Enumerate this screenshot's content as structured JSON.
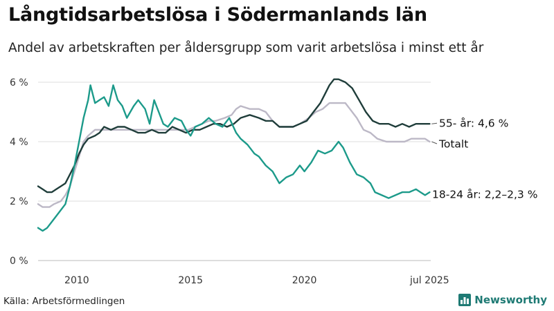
{
  "header": {
    "title": "Långtidsarbetslösa i Södermanlands län",
    "subtitle": "Andel av arbetskraften per åldersgrupp som varit arbetslösa i minst ett år"
  },
  "footer": {
    "source": "Källa: Arbetsförmedlingen",
    "brand": "Newsworthy"
  },
  "icons": {
    "brand": "chart-bars-icon"
  },
  "colors": {
    "older": "#1f3d3a",
    "young": "#1c9a8a",
    "total": "#bcb8c6",
    "grid": "#dddddd"
  },
  "chart_data": {
    "type": "line",
    "title": "Långtidsarbetslösa i Södermanlands län",
    "xlabel": "",
    "ylabel": "",
    "xlim": [
      2008.3,
      2025.55
    ],
    "ylim": [
      0,
      6
    ],
    "x_ticks": [
      {
        "value": 2010,
        "label": "2010"
      },
      {
        "value": 2015,
        "label": "2015"
      },
      {
        "value": 2020,
        "label": "2020"
      },
      {
        "value": 2025.5,
        "label": "jul 2025"
      }
    ],
    "y_ticks": [
      {
        "value": 0,
        "label": "0 %"
      },
      {
        "value": 2,
        "label": "2 %"
      },
      {
        "value": 4,
        "label": "4 %"
      },
      {
        "value": 6,
        "label": "6 %"
      }
    ],
    "grid": true,
    "series": [
      {
        "name": "Totalt",
        "key": "total",
        "end_label": "Totalt",
        "points": [
          [
            2008.3,
            1.9
          ],
          [
            2008.5,
            1.8
          ],
          [
            2008.8,
            1.8
          ],
          [
            2009.0,
            1.9
          ],
          [
            2009.3,
            2.0
          ],
          [
            2009.5,
            2.2
          ],
          [
            2009.7,
            2.5
          ],
          [
            2009.9,
            3.0
          ],
          [
            2010.1,
            3.5
          ],
          [
            2010.3,
            4.0
          ],
          [
            2010.5,
            4.2
          ],
          [
            2010.8,
            4.4
          ],
          [
            2011.2,
            4.4
          ],
          [
            2011.6,
            4.4
          ],
          [
            2012.0,
            4.4
          ],
          [
            2012.5,
            4.4
          ],
          [
            2013.0,
            4.4
          ],
          [
            2013.5,
            4.4
          ],
          [
            2014.0,
            4.4
          ],
          [
            2014.5,
            4.4
          ],
          [
            2014.9,
            4.4
          ],
          [
            2015.2,
            4.5
          ],
          [
            2015.5,
            4.6
          ],
          [
            2015.8,
            4.7
          ],
          [
            2016.1,
            4.7
          ],
          [
            2016.5,
            4.8
          ],
          [
            2016.8,
            4.9
          ],
          [
            2017.0,
            5.1
          ],
          [
            2017.2,
            5.2
          ],
          [
            2017.6,
            5.1
          ],
          [
            2018.0,
            5.1
          ],
          [
            2018.3,
            5.0
          ],
          [
            2018.6,
            4.7
          ],
          [
            2018.9,
            4.5
          ],
          [
            2019.2,
            4.5
          ],
          [
            2019.5,
            4.5
          ],
          [
            2019.8,
            4.6
          ],
          [
            2020.0,
            4.7
          ],
          [
            2020.2,
            4.8
          ],
          [
            2020.5,
            5.0
          ],
          [
            2020.8,
            5.1
          ],
          [
            2021.1,
            5.3
          ],
          [
            2021.5,
            5.3
          ],
          [
            2021.8,
            5.3
          ],
          [
            2022.0,
            5.1
          ],
          [
            2022.3,
            4.8
          ],
          [
            2022.6,
            4.4
          ],
          [
            2022.9,
            4.3
          ],
          [
            2023.2,
            4.1
          ],
          [
            2023.6,
            4.0
          ],
          [
            2024.0,
            4.0
          ],
          [
            2024.4,
            4.0
          ],
          [
            2024.7,
            4.1
          ],
          [
            2025.0,
            4.1
          ],
          [
            2025.3,
            4.1
          ],
          [
            2025.5,
            4.0
          ]
        ]
      },
      {
        "name": "55- år",
        "key": "older",
        "end_label": "55- år: 4,6 %",
        "points": [
          [
            2008.3,
            2.5
          ],
          [
            2008.5,
            2.4
          ],
          [
            2008.7,
            2.3
          ],
          [
            2008.9,
            2.3
          ],
          [
            2009.1,
            2.4
          ],
          [
            2009.3,
            2.5
          ],
          [
            2009.5,
            2.6
          ],
          [
            2009.7,
            2.9
          ],
          [
            2009.9,
            3.2
          ],
          [
            2010.1,
            3.6
          ],
          [
            2010.3,
            3.9
          ],
          [
            2010.5,
            4.1
          ],
          [
            2010.8,
            4.2
          ],
          [
            2011.0,
            4.3
          ],
          [
            2011.2,
            4.5
          ],
          [
            2011.5,
            4.4
          ],
          [
            2011.8,
            4.5
          ],
          [
            2012.1,
            4.5
          ],
          [
            2012.4,
            4.4
          ],
          [
            2012.7,
            4.3
          ],
          [
            2013.0,
            4.3
          ],
          [
            2013.3,
            4.4
          ],
          [
            2013.6,
            4.3
          ],
          [
            2013.9,
            4.3
          ],
          [
            2014.2,
            4.5
          ],
          [
            2014.5,
            4.4
          ],
          [
            2014.8,
            4.3
          ],
          [
            2015.1,
            4.4
          ],
          [
            2015.4,
            4.4
          ],
          [
            2015.7,
            4.5
          ],
          [
            2016.0,
            4.6
          ],
          [
            2016.3,
            4.6
          ],
          [
            2016.6,
            4.5
          ],
          [
            2016.9,
            4.6
          ],
          [
            2017.2,
            4.8
          ],
          [
            2017.6,
            4.9
          ],
          [
            2018.0,
            4.8
          ],
          [
            2018.3,
            4.7
          ],
          [
            2018.6,
            4.7
          ],
          [
            2018.9,
            4.5
          ],
          [
            2019.2,
            4.5
          ],
          [
            2019.5,
            4.5
          ],
          [
            2019.8,
            4.6
          ],
          [
            2020.1,
            4.7
          ],
          [
            2020.4,
            5.0
          ],
          [
            2020.7,
            5.3
          ],
          [
            2020.9,
            5.6
          ],
          [
            2021.1,
            5.9
          ],
          [
            2021.3,
            6.1
          ],
          [
            2021.5,
            6.1
          ],
          [
            2021.8,
            6.0
          ],
          [
            2022.1,
            5.8
          ],
          [
            2022.4,
            5.4
          ],
          [
            2022.7,
            5.0
          ],
          [
            2023.0,
            4.7
          ],
          [
            2023.3,
            4.6
          ],
          [
            2023.7,
            4.6
          ],
          [
            2024.0,
            4.5
          ],
          [
            2024.3,
            4.6
          ],
          [
            2024.6,
            4.5
          ],
          [
            2024.9,
            4.6
          ],
          [
            2025.2,
            4.6
          ],
          [
            2025.5,
            4.6
          ]
        ]
      },
      {
        "name": "18-24 år",
        "key": "young",
        "end_label": "18-24 år: 2,2–2,3 %",
        "points": [
          [
            2008.3,
            1.1
          ],
          [
            2008.5,
            1.0
          ],
          [
            2008.7,
            1.1
          ],
          [
            2008.9,
            1.3
          ],
          [
            2009.1,
            1.5
          ],
          [
            2009.3,
            1.7
          ],
          [
            2009.5,
            1.9
          ],
          [
            2009.7,
            2.5
          ],
          [
            2009.9,
            3.2
          ],
          [
            2010.1,
            4.0
          ],
          [
            2010.3,
            4.8
          ],
          [
            2010.5,
            5.4
          ],
          [
            2010.6,
            5.9
          ],
          [
            2010.8,
            5.3
          ],
          [
            2011.0,
            5.4
          ],
          [
            2011.2,
            5.5
          ],
          [
            2011.4,
            5.2
          ],
          [
            2011.6,
            5.9
          ],
          [
            2011.8,
            5.4
          ],
          [
            2012.0,
            5.2
          ],
          [
            2012.2,
            4.8
          ],
          [
            2012.5,
            5.2
          ],
          [
            2012.7,
            5.4
          ],
          [
            2013.0,
            5.1
          ],
          [
            2013.2,
            4.6
          ],
          [
            2013.4,
            5.4
          ],
          [
            2013.6,
            5.0
          ],
          [
            2013.8,
            4.6
          ],
          [
            2014.0,
            4.5
          ],
          [
            2014.3,
            4.8
          ],
          [
            2014.6,
            4.7
          ],
          [
            2014.8,
            4.4
          ],
          [
            2015.0,
            4.2
          ],
          [
            2015.2,
            4.5
          ],
          [
            2015.5,
            4.6
          ],
          [
            2015.8,
            4.8
          ],
          [
            2016.1,
            4.6
          ],
          [
            2016.4,
            4.5
          ],
          [
            2016.7,
            4.8
          ],
          [
            2017.0,
            4.3
          ],
          [
            2017.2,
            4.1
          ],
          [
            2017.5,
            3.9
          ],
          [
            2017.8,
            3.6
          ],
          [
            2018.0,
            3.5
          ],
          [
            2018.3,
            3.2
          ],
          [
            2018.6,
            3.0
          ],
          [
            2018.9,
            2.6
          ],
          [
            2019.2,
            2.8
          ],
          [
            2019.5,
            2.9
          ],
          [
            2019.8,
            3.2
          ],
          [
            2020.0,
            3.0
          ],
          [
            2020.3,
            3.3
          ],
          [
            2020.6,
            3.7
          ],
          [
            2020.9,
            3.6
          ],
          [
            2021.2,
            3.7
          ],
          [
            2021.5,
            4.0
          ],
          [
            2021.7,
            3.8
          ],
          [
            2022.0,
            3.3
          ],
          [
            2022.3,
            2.9
          ],
          [
            2022.6,
            2.8
          ],
          [
            2022.9,
            2.6
          ],
          [
            2023.1,
            2.3
          ],
          [
            2023.4,
            2.2
          ],
          [
            2023.7,
            2.1
          ],
          [
            2024.0,
            2.2
          ],
          [
            2024.3,
            2.3
          ],
          [
            2024.6,
            2.3
          ],
          [
            2024.9,
            2.4
          ],
          [
            2025.1,
            2.3
          ],
          [
            2025.3,
            2.2
          ],
          [
            2025.5,
            2.3
          ]
        ]
      }
    ]
  }
}
